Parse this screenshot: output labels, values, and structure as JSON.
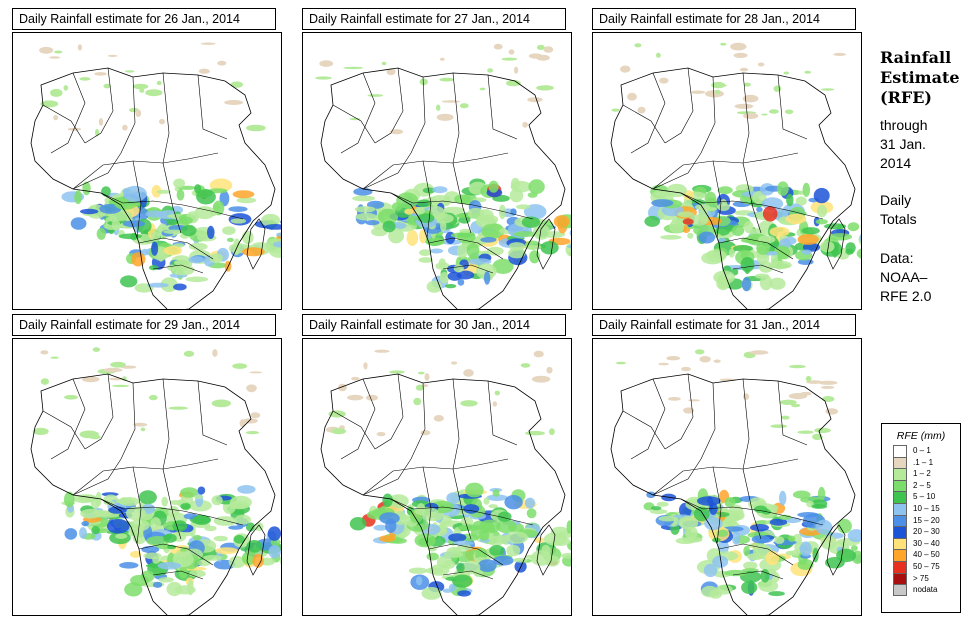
{
  "panels": [
    {
      "title": "Daily Rainfall estimate for  26 Jan., 2014"
    },
    {
      "title": "Daily Rainfall estimate for  27 Jan., 2014"
    },
    {
      "title": "Daily Rainfall estimate for  28 Jan., 2014"
    },
    {
      "title": "Daily Rainfall estimate for  29 Jan., 2014"
    },
    {
      "title": "Daily Rainfall estimate for  30 Jan., 2014"
    },
    {
      "title": "Daily Rainfall estimate for  31 Jan., 2014"
    }
  ],
  "side": {
    "title_line1": "Rainfall",
    "title_line2": "Estimate",
    "title_line3": "(RFE)",
    "through_line1": "through",
    "through_line2": "31 Jan.",
    "through_line3": "2014",
    "daily_line1": "Daily",
    "daily_line2": "Totals",
    "data_line1": "Data:",
    "data_line2": "NOAA–",
    "data_line3": "RFE 2.0"
  },
  "legend": {
    "title": "RFE (mm)",
    "items": [
      {
        "label": "0 – 1",
        "color": "#ffffff"
      },
      {
        "label": ".1 – 1",
        "color": "#e6d5bf"
      },
      {
        "label": "1 – 2",
        "color": "#b5ea9b"
      },
      {
        "label": "2 – 5",
        "color": "#7cde6a"
      },
      {
        "label": "5 – 10",
        "color": "#40c450"
      },
      {
        "label": "10 – 15",
        "color": "#8ec3f0"
      },
      {
        "label": "15 – 20",
        "color": "#4b8fe6"
      },
      {
        "label": "20 – 30",
        "color": "#1c54d8"
      },
      {
        "label": "30 – 40",
        "color": "#ffe37a"
      },
      {
        "label": "40 – 50",
        "color": "#ffa52a"
      },
      {
        "label": "50 – 75",
        "color": "#e8301e"
      },
      {
        "label": "> 75",
        "color": "#a81010"
      },
      {
        "label": "nodata",
        "color": "#c8c8c8"
      }
    ]
  }
}
